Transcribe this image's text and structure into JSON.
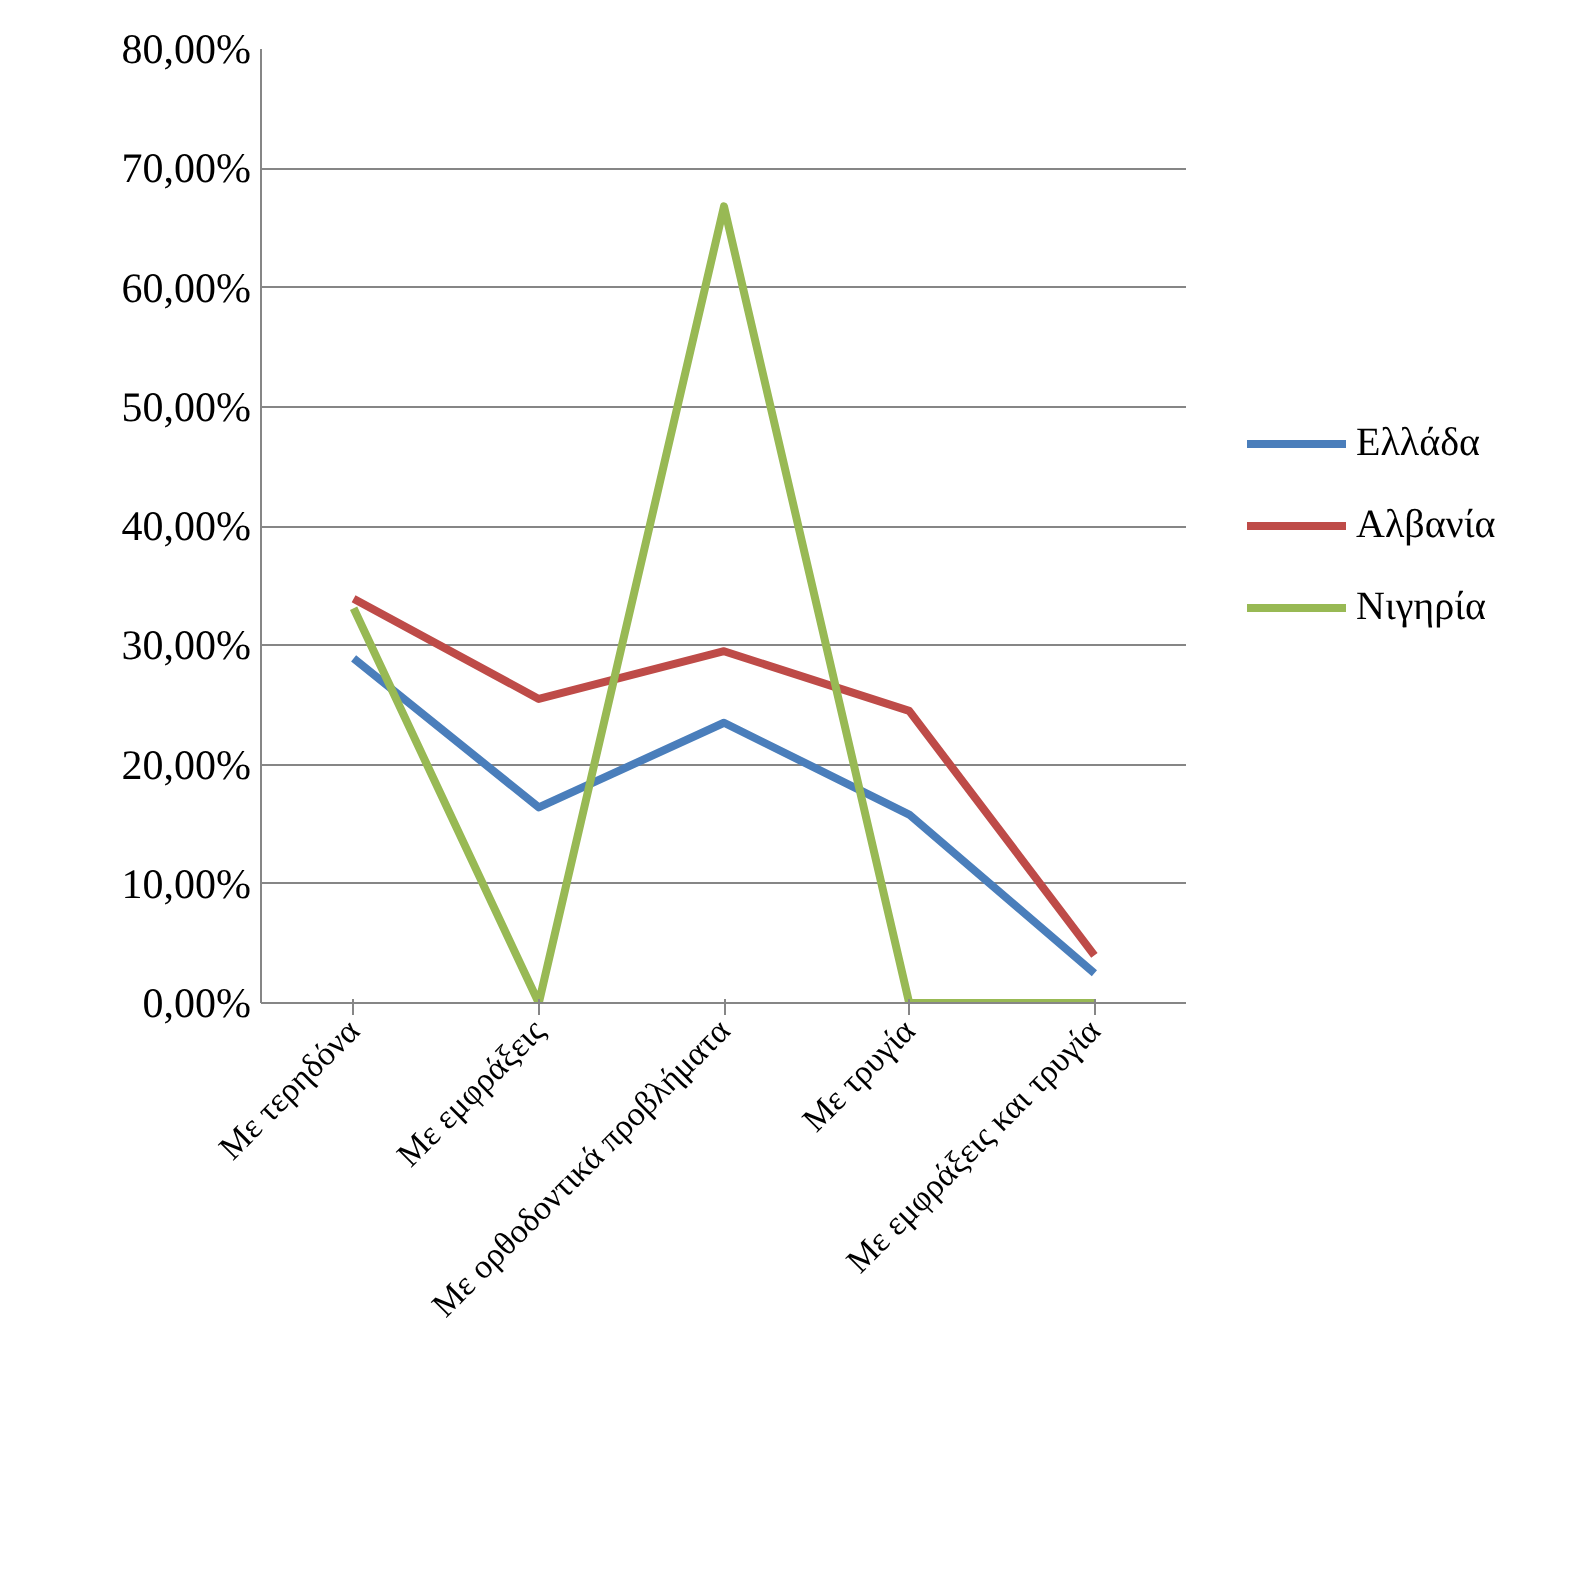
{
  "chart_data": {
    "type": "line",
    "categories": [
      "Με τερηδόνα",
      "Με εμφράξεις",
      "Με ορθοδοντικά προβλήματα",
      "Με τρυγία",
      "Με εμφράξεις και τρυγία"
    ],
    "series": [
      {
        "name": "Ελλάδα",
        "color": "#4a7ebb",
        "values": [
          28.9,
          16.4,
          23.5,
          15.8,
          2.5
        ]
      },
      {
        "name": "Αλβανία",
        "color": "#be4b48",
        "values": [
          33.9,
          25.5,
          29.5,
          24.5,
          4.0
        ]
      },
      {
        "name": "Νιγηρία",
        "color": "#98b954",
        "values": [
          33.1,
          0,
          66.8,
          0,
          0
        ]
      }
    ],
    "ylim": [
      0,
      80
    ],
    "yticks": [
      {
        "value": 0,
        "label": "0,00%"
      },
      {
        "value": 10,
        "label": "10,00%"
      },
      {
        "value": 20,
        "label": "20,00%"
      },
      {
        "value": 30,
        "label": "30,00%"
      },
      {
        "value": 40,
        "label": "40,00%"
      },
      {
        "value": 50,
        "label": "50,00%"
      },
      {
        "value": 60,
        "label": "60,00%"
      },
      {
        "value": 70,
        "label": "70,00%"
      },
      {
        "value": 80,
        "label": "80,00%"
      }
    ],
    "grid": "y",
    "legend": "right",
    "marker": "none",
    "line_style": "solid"
  }
}
